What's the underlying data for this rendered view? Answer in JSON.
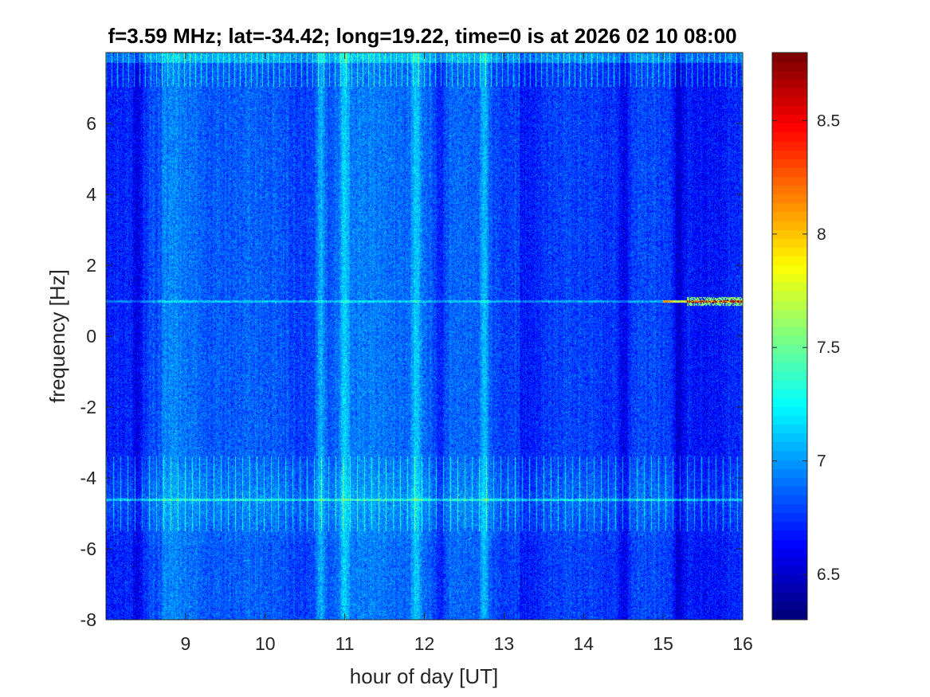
{
  "chart_data": {
    "type": "heatmap",
    "title": "f=3.59 MHz;  lat=-34.42; long=19.22, time=0 is at 2026 02 10 08:00",
    "xlabel": "hour of day [UT]",
    "ylabel": "frequency [Hz]",
    "xlim": [
      8,
      16
    ],
    "ylim": [
      -8,
      8
    ],
    "x_ticks": [
      9,
      10,
      11,
      12,
      13,
      14,
      15,
      16
    ],
    "y_ticks": [
      -8,
      -6,
      -4,
      -2,
      0,
      2,
      4,
      6
    ],
    "colormap": "jet",
    "clim": [
      6.3,
      8.8
    ],
    "colorbar_ticks": [
      6.5,
      7,
      7.5,
      8,
      8.5
    ],
    "grid": false,
    "features": {
      "carrier_line_y": 1.0,
      "interference_line_y": -4.6,
      "bright_time_bands": [
        10.7,
        11.0,
        11.9,
        12.75
      ],
      "dark_time_bands": [
        8.4,
        12.2,
        14.5,
        15.2
      ],
      "strong_signal_after_hour": 15.0
    }
  }
}
